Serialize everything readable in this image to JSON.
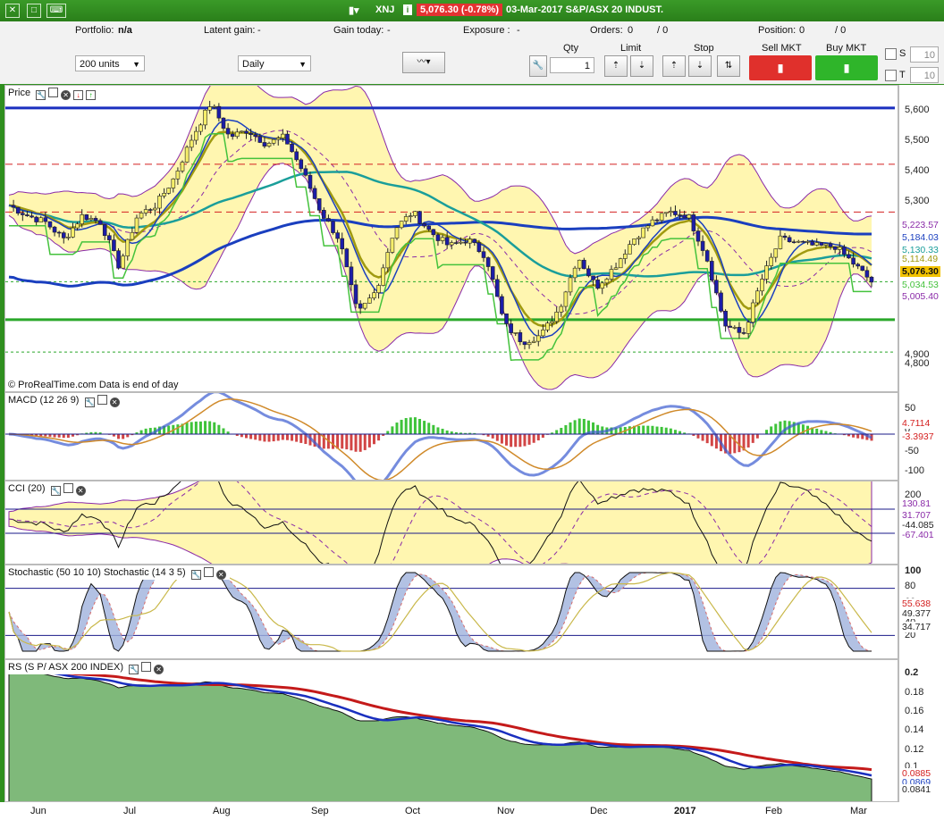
{
  "titlebar": {
    "symbol": "XNJ",
    "price_badge": "5,076.30 (-0.78%)",
    "date_name": "03-Mar-2017  S&P/ASX 20 INDUST."
  },
  "infobar": {
    "portfolio_label": "Portfolio:",
    "portfolio_value": "n/a",
    "latent_label": "Latent gain:",
    "latent_value": "-",
    "today_label": "Gain today:",
    "today_value": "-",
    "exposure_label": "Exposure :",
    "exposure_value": "-",
    "orders_label": "Orders:",
    "orders_value": "0",
    "orders_value2": "/ 0",
    "position_label": "Position:",
    "position_value": "0",
    "position_value2": "/ 0"
  },
  "toolbar": {
    "units": "200 units",
    "period": "Daily",
    "qty_label": "Qty",
    "qty_value": "1",
    "limit_label": "Limit",
    "stop_label": "Stop",
    "sell_label": "Sell MKT",
    "buy_label": "Buy MKT",
    "s_label": "S",
    "s_value": "10",
    "t_label": "T",
    "t_value": "10"
  },
  "colors": {
    "up_candle": "#f6ee6a",
    "down_candle": "#1c1ca8",
    "band_fill": "#fff6b0",
    "band_line": "#8a2aa8",
    "ma_teal": "#1a9e9a",
    "ma_blue": "#1a3fbf",
    "ma_olive": "#a09a10",
    "stop_green": "#44c23c",
    "rs_fill": "#7fb97a"
  },
  "chart_data": [
    {
      "type": "candlestick",
      "title": "Price",
      "copyright": "© ProRealTime.com  Data is end of day",
      "ylim": [
        4750,
        5650
      ],
      "yticks": [
        "5,600",
        "5,500",
        "5,400",
        "5,300",
        "4,900",
        "4,800"
      ],
      "x_labels": [
        "Jun",
        "Jul",
        "Aug",
        "Sep",
        "Oct",
        "Nov",
        "Dec",
        "2017",
        "Feb",
        "Mar"
      ],
      "close_path": [
        5300,
        5270,
        5250,
        5200,
        5270,
        5250,
        5120,
        5270,
        5300,
        5380,
        5500,
        5600,
        5500,
        5520,
        5480,
        5500,
        5400,
        5280,
        5200,
        4980,
        5050,
        5230,
        5280,
        5220,
        5180,
        5200,
        5150,
        4950,
        4900,
        4920,
        5000,
        5150,
        5060,
        5120,
        5200,
        5250,
        5280,
        5270,
        5150,
        4950,
        4920,
        5080,
        5200,
        5190,
        5180,
        5180,
        5130,
        5076
      ],
      "levels": [
        {
          "value": 5585,
          "color": "#1a2fbf",
          "style": "solid"
        },
        {
          "value": 5420,
          "color": "#d42020",
          "style": "dashed"
        },
        {
          "value": 5280,
          "color": "#d42020",
          "style": "dashed"
        },
        {
          "value": 4965,
          "color": "#2aa82a",
          "style": "solid"
        },
        {
          "value": 4870,
          "color": "#2aa82a",
          "style": "dotted"
        },
        {
          "value": 5076,
          "color": "#2aa82a",
          "style": "dotted"
        }
      ],
      "value_labels": [
        {
          "text": "5,223.57",
          "color": "#8a2aa8"
        },
        {
          "text": "5,184.03",
          "color": "#1a3fbf"
        },
        {
          "text": "5,130.33",
          "color": "#1a9e9a"
        },
        {
          "text": "5,114.49",
          "color": "#a09a10"
        },
        {
          "text": "5,076.30",
          "color": "#e8c000"
        },
        {
          "text": "5,034.53",
          "color": "#44c23c"
        },
        {
          "text": "5,005.40",
          "color": "#8a2aa8"
        }
      ]
    },
    {
      "type": "bar",
      "title": "MACD (12 26 9)",
      "yticks": [
        "50",
        "0",
        "-50",
        "-100"
      ],
      "value_labels": [
        {
          "text": "4.7114",
          "color": "#d42020"
        },
        {
          "text": "-3.3937",
          "color": "#d42020"
        }
      ]
    },
    {
      "type": "line",
      "title": "CCI (20)",
      "yticks": [
        "200",
        "0"
      ],
      "value_labels": [
        {
          "text": "130.81",
          "color": "#8a2aa8"
        },
        {
          "text": "31.707",
          "color": "#8a2aa8"
        },
        {
          "text": "-44.085",
          "color": "#222"
        },
        {
          "text": "-67.401",
          "color": "#8a2aa8"
        }
      ]
    },
    {
      "type": "line",
      "title": "Stochastic (50 10 10) Stochastic (14 3 5)",
      "yticks": [
        "100",
        "80",
        "60",
        "40",
        "20"
      ],
      "value_labels": [
        {
          "text": "55.638",
          "color": "#d42020"
        },
        {
          "text": "49.377",
          "color": "#222"
        },
        {
          "text": "34.717",
          "color": "#222"
        }
      ]
    },
    {
      "type": "area",
      "title": "RS (S P/ ASX 200 INDEX)",
      "yticks": [
        "0.2",
        "0.18",
        "0.16",
        "0.14",
        "0.12",
        "0.1"
      ],
      "value_labels": [
        {
          "text": "0.0885",
          "color": "#d42020"
        },
        {
          "text": "0.0869",
          "color": "#1a3fbf"
        },
        {
          "text": "0.0841",
          "color": "#222"
        }
      ]
    }
  ]
}
